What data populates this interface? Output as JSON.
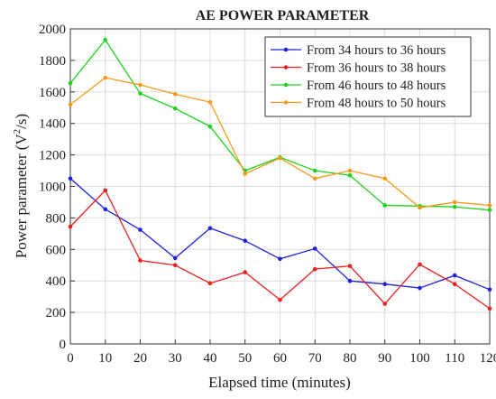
{
  "chart_data": {
    "type": "line",
    "title": "AE POWER PARAMETER",
    "xlabel": "Elapsed time (minutes)",
    "ylabel_prefix": "Power parameter (V",
    "ylabel_sup": "2",
    "ylabel_suffix": "/s)",
    "xlim": [
      0,
      120
    ],
    "ylim": [
      0,
      2000
    ],
    "xticks": [
      0,
      10,
      20,
      30,
      40,
      50,
      60,
      70,
      80,
      90,
      100,
      110,
      120
    ],
    "yticks": [
      0,
      200,
      400,
      600,
      800,
      1000,
      1200,
      1400,
      1600,
      1800,
      2000
    ],
    "grid": true,
    "legend_position": "top-right",
    "x": [
      0,
      10,
      20,
      30,
      40,
      50,
      60,
      70,
      80,
      90,
      100,
      110,
      120
    ],
    "series": [
      {
        "name": "From 34 hours to 36 hours",
        "color": "#1f1fe0",
        "values": [
          1050,
          855,
          725,
          545,
          735,
          655,
          540,
          605,
          400,
          380,
          355,
          435,
          345
        ]
      },
      {
        "name": "From 36 hours to 38 hours",
        "color": "#e8201e",
        "values": [
          745,
          975,
          530,
          500,
          385,
          455,
          280,
          475,
          495,
          255,
          505,
          380,
          225
        ]
      },
      {
        "name": "From 46 hours to 48 hours",
        "color": "#1ed21e",
        "values": [
          1655,
          1930,
          1590,
          1495,
          1380,
          1100,
          1185,
          1100,
          1070,
          880,
          875,
          870,
          850
        ]
      },
      {
        "name": "From 48 hours to 50 hours",
        "color": "#f59a1a",
        "values": [
          1520,
          1690,
          1645,
          1585,
          1535,
          1080,
          1180,
          1050,
          1100,
          1050,
          865,
          900,
          880
        ]
      }
    ]
  }
}
